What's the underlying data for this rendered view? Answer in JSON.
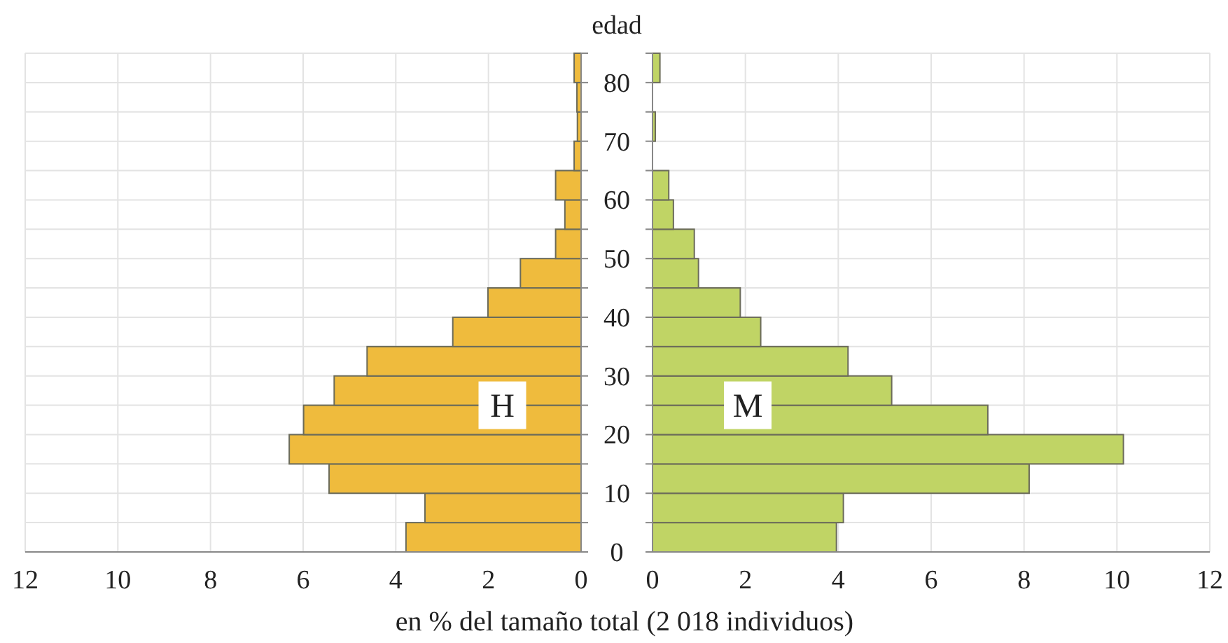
{
  "chart_data": [
    {
      "type": "histogram",
      "orientation": "horizontal",
      "bins": [
        0,
        5,
        10,
        15,
        20,
        25,
        30,
        35,
        40,
        45,
        50,
        55,
        60,
        65,
        70,
        75,
        80,
        85
      ],
      "series": [
        {
          "name": "H",
          "color": "#efbb3d",
          "values": [
            3.78,
            3.37,
            5.44,
            6.3,
            5.99,
            5.33,
            4.62,
            2.77,
            2.01,
            1.31,
            0.55,
            0.35,
            0.55,
            0.15,
            0.08,
            0.09,
            0.15
          ]
        }
      ],
      "xlim": [
        12,
        0
      ],
      "xticks": [
        12,
        10,
        8,
        6,
        4,
        2,
        0
      ],
      "ylim": [
        0,
        85
      ],
      "yticks": [
        0,
        {
          "value": 5,
          "label": null
        },
        10,
        {
          "value": 15,
          "label": null
        },
        20,
        {
          "value": 25,
          "label": null
        },
        30,
        {
          "value": 35,
          "label": null
        },
        40,
        {
          "value": 45,
          "label": null
        },
        50,
        {
          "value": 55,
          "label": null
        },
        60,
        {
          "value": 65,
          "label": null
        },
        70,
        {
          "value": 75,
          "label": null
        },
        80,
        {
          "value": 85,
          "label": null
        }
      ],
      "tick_labels": "x",
      "grid": true,
      "xlabel": "en % del tamaño total (2 018 individuos)"
    },
    {
      "type": "histogram",
      "orientation": "horizontal",
      "bins": [
        0,
        5,
        10,
        15,
        20,
        25,
        30,
        35,
        40,
        45,
        50,
        55,
        60,
        65,
        70,
        75,
        80,
        85
      ],
      "series": [
        {
          "name": "M",
          "color": "#c0d465",
          "values": [
            3.96,
            4.11,
            8.11,
            10.14,
            7.22,
            5.15,
            4.21,
            2.33,
            1.89,
            0.99,
            0.9,
            0.45,
            0.35,
            0,
            0.06,
            0,
            0.16
          ]
        }
      ],
      "xlim": [
        0,
        12
      ],
      "xticks": [
        0,
        2,
        4,
        6,
        8,
        10,
        12
      ],
      "ylim": [
        0,
        85
      ],
      "yticks": [
        0,
        {
          "value": 5,
          "label": null
        },
        10,
        {
          "value": 15,
          "label": null
        },
        20,
        {
          "value": 25,
          "label": null
        },
        30,
        {
          "value": 35,
          "label": null
        },
        40,
        {
          "value": 45,
          "label": null
        },
        50,
        {
          "value": 55,
          "label": null
        },
        60,
        {
          "value": 65,
          "label": null
        },
        70,
        {
          "value": 75,
          "label": null
        },
        80,
        {
          "value": 85,
          "label": null
        }
      ],
      "grid": true,
      "ylabel": "edad"
    }
  ]
}
